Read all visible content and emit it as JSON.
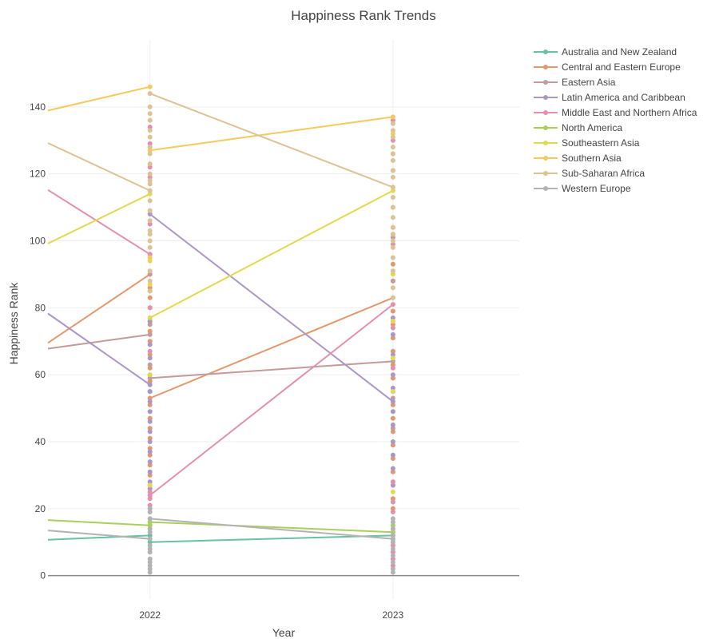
{
  "chart_data": {
    "type": "line",
    "title": "Happiness Rank Trends",
    "xlabel": "Year",
    "ylabel": "Happiness Rank",
    "x_ticks": [
      "2022",
      "2023"
    ],
    "y_ticks": [
      0,
      20,
      40,
      60,
      80,
      100,
      120,
      140
    ],
    "xlim": [
      2021.58,
      2023.52
    ],
    "ylim": [
      -7,
      160
    ],
    "grid": true,
    "legend_position": "top-right",
    "series": [
      {
        "name": "Australia and New Zealand",
        "color": "#66c2a5",
        "lines": [
          [
            [
              2021.58,
              10.7
            ],
            [
              2022,
              12
            ]
          ],
          [
            [
              2022,
              10
            ],
            [
              2023,
              12
            ]
          ]
        ],
        "points": [
          [
            2022,
            10
          ],
          [
            2022,
            12
          ],
          [
            2023,
            11
          ],
          [
            2023,
            12
          ]
        ]
      },
      {
        "name": "Central and Eastern Europe",
        "color": "#e5976c",
        "lines": [
          [
            [
              2021.58,
              69.5
            ],
            [
              2022,
              90
            ]
          ],
          [
            [
              2022,
              53
            ],
            [
              2023,
              83
            ]
          ]
        ],
        "points": [
          [
            2022,
            27
          ],
          [
            2022,
            30
          ],
          [
            2022,
            33
          ],
          [
            2022,
            36
          ],
          [
            2022,
            38
          ],
          [
            2022,
            41
          ],
          [
            2022,
            44
          ],
          [
            2022,
            47
          ],
          [
            2022,
            51
          ],
          [
            2022,
            53
          ],
          [
            2022,
            55
          ],
          [
            2022,
            58
          ],
          [
            2022,
            62
          ],
          [
            2022,
            66
          ],
          [
            2022,
            70
          ],
          [
            2022,
            73
          ],
          [
            2022,
            76
          ],
          [
            2022,
            80
          ],
          [
            2022,
            83
          ],
          [
            2022,
            86
          ],
          [
            2022,
            90
          ],
          [
            2023,
            20
          ],
          [
            2023,
            23
          ],
          [
            2023,
            27
          ],
          [
            2023,
            31
          ],
          [
            2023,
            35
          ],
          [
            2023,
            39
          ],
          [
            2023,
            43
          ],
          [
            2023,
            47
          ],
          [
            2023,
            51
          ],
          [
            2023,
            55
          ],
          [
            2023,
            59
          ],
          [
            2023,
            63
          ],
          [
            2023,
            67
          ],
          [
            2023,
            71
          ],
          [
            2023,
            75
          ],
          [
            2023,
            79
          ],
          [
            2023,
            83
          ],
          [
            2023,
            88
          ],
          [
            2023,
            93
          ]
        ]
      },
      {
        "name": "Eastern Asia",
        "color": "#c49a9a",
        "lines": [
          [
            [
              2021.58,
              67.8
            ],
            [
              2022,
              72
            ]
          ],
          [
            [
              2022,
              59
            ],
            [
              2023,
              64
            ]
          ]
        ],
        "points": [
          [
            2022,
            59
          ],
          [
            2022,
            63
          ],
          [
            2022,
            72
          ],
          [
            2022,
            75
          ],
          [
            2022,
            90
          ],
          [
            2023,
            44
          ],
          [
            2023,
            53
          ],
          [
            2023,
            64
          ],
          [
            2023,
            88
          ],
          [
            2023,
            101
          ]
        ]
      },
      {
        "name": "Latin America and Caribbean",
        "color": "#ab96c8",
        "lines": [
          [
            [
              2021.58,
              78.3
            ],
            [
              2022,
              57
            ]
          ],
          [
            [
              2022,
              108
            ],
            [
              2023,
              52
            ]
          ]
        ],
        "points": [
          [
            2022,
            26
          ],
          [
            2022,
            28
          ],
          [
            2022,
            31
          ],
          [
            2022,
            34
          ],
          [
            2022,
            37
          ],
          [
            2022,
            40
          ],
          [
            2022,
            43
          ],
          [
            2022,
            46
          ],
          [
            2022,
            49
          ],
          [
            2022,
            52
          ],
          [
            2022,
            55
          ],
          [
            2022,
            57
          ],
          [
            2022,
            60
          ],
          [
            2022,
            65
          ],
          [
            2022,
            69
          ],
          [
            2022,
            76
          ],
          [
            2022,
            108
          ],
          [
            2023,
            22
          ],
          [
            2023,
            27
          ],
          [
            2023,
            32
          ],
          [
            2023,
            36
          ],
          [
            2023,
            40
          ],
          [
            2023,
            45
          ],
          [
            2023,
            49
          ],
          [
            2023,
            52
          ],
          [
            2023,
            56
          ],
          [
            2023,
            60
          ],
          [
            2023,
            66
          ],
          [
            2023,
            72
          ],
          [
            2023,
            77
          ]
        ]
      },
      {
        "name": "Middle East and Northern Africa",
        "color": "#e48fb0",
        "lines": [
          [
            [
              2021.58,
              115.2
            ],
            [
              2022,
              96
            ]
          ],
          [
            [
              2022,
              24
            ],
            [
              2023,
              81
            ]
          ]
        ],
        "points": [
          [
            2022,
            21
          ],
          [
            2022,
            23
          ],
          [
            2022,
            24
          ],
          [
            2022,
            25
          ],
          [
            2022,
            67
          ],
          [
            2022,
            80
          ],
          [
            2022,
            96
          ],
          [
            2022,
            105
          ],
          [
            2022,
            119
          ],
          [
            2022,
            122
          ],
          [
            2022,
            129
          ],
          [
            2022,
            134
          ],
          [
            2023,
            3
          ],
          [
            2023,
            5
          ],
          [
            2023,
            7
          ],
          [
            2023,
            9
          ],
          [
            2023,
            14
          ],
          [
            2023,
            19
          ],
          [
            2023,
            22
          ],
          [
            2023,
            28
          ],
          [
            2023,
            62
          ],
          [
            2023,
            74
          ],
          [
            2023,
            81
          ],
          [
            2023,
            99
          ],
          [
            2023,
            104
          ],
          [
            2023,
            121
          ],
          [
            2023,
            130
          ],
          [
            2023,
            136
          ]
        ]
      },
      {
        "name": "North America",
        "color": "#a9cf5c",
        "lines": [
          [
            [
              2021.58,
              16.6
            ],
            [
              2022,
              15
            ]
          ],
          [
            [
              2022,
              16
            ],
            [
              2023,
              13
            ]
          ]
        ],
        "points": [
          [
            2022,
            15
          ],
          [
            2022,
            16
          ],
          [
            2023,
            13
          ],
          [
            2023,
            15
          ]
        ]
      },
      {
        "name": "Southeastern Asia",
        "color": "#e3d94f",
        "lines": [
          [
            [
              2021.58,
              99.2
            ],
            [
              2022,
              114
            ]
          ],
          [
            [
              2022,
              77
            ],
            [
              2023,
              115
            ]
          ]
        ],
        "points": [
          [
            2022,
            27
          ],
          [
            2022,
            60
          ],
          [
            2022,
            77
          ],
          [
            2022,
            87
          ],
          [
            2022,
            94
          ],
          [
            2022,
            114
          ],
          [
            2023,
            25
          ],
          [
            2023,
            55
          ],
          [
            2023,
            65
          ],
          [
            2023,
            76
          ],
          [
            2023,
            90
          ],
          [
            2023,
            115
          ]
        ]
      },
      {
        "name": "Southern Asia",
        "color": "#f5c95c",
        "lines": [
          [
            [
              2021.58,
              138.9
            ],
            [
              2022,
              146
            ]
          ],
          [
            [
              2022,
              127
            ],
            [
              2023,
              137
            ]
          ]
        ],
        "points": [
          [
            2022,
            85
          ],
          [
            2022,
            95
          ],
          [
            2022,
            127
          ],
          [
            2022,
            146
          ],
          [
            2023,
            110
          ],
          [
            2023,
            126
          ],
          [
            2023,
            132
          ],
          [
            2023,
            137
          ]
        ]
      },
      {
        "name": "Sub-Saharan Africa",
        "color": "#dcc394",
        "lines": [
          [
            [
              2021.58,
              129.2
            ],
            [
              2022,
              115
            ]
          ],
          [
            [
              2022,
              144
            ],
            [
              2023,
              116
            ]
          ]
        ],
        "points": [
          [
            2022,
            85
          ],
          [
            2022,
            88
          ],
          [
            2022,
            91
          ],
          [
            2022,
            98
          ],
          [
            2022,
            100
          ],
          [
            2022,
            102
          ],
          [
            2022,
            103
          ],
          [
            2022,
            106
          ],
          [
            2022,
            109
          ],
          [
            2022,
            112
          ],
          [
            2022,
            115
          ],
          [
            2022,
            117
          ],
          [
            2022,
            118
          ],
          [
            2022,
            120
          ],
          [
            2022,
            123
          ],
          [
            2022,
            126
          ],
          [
            2022,
            128
          ],
          [
            2022,
            131
          ],
          [
            2022,
            133
          ],
          [
            2022,
            136
          ],
          [
            2022,
            138
          ],
          [
            2022,
            140
          ],
          [
            2022,
            144
          ],
          [
            2023,
            83
          ],
          [
            2023,
            86
          ],
          [
            2023,
            91
          ],
          [
            2023,
            95
          ],
          [
            2023,
            98
          ],
          [
            2023,
            100
          ],
          [
            2023,
            102
          ],
          [
            2023,
            104
          ],
          [
            2023,
            107
          ],
          [
            2023,
            110
          ],
          [
            2023,
            113
          ],
          [
            2023,
            116
          ],
          [
            2023,
            119
          ],
          [
            2023,
            121
          ],
          [
            2023,
            124
          ],
          [
            2023,
            126
          ],
          [
            2023,
            128
          ],
          [
            2023,
            131
          ],
          [
            2023,
            133
          ],
          [
            2023,
            135
          ]
        ]
      },
      {
        "name": "Western Europe",
        "color": "#b3b3b3",
        "lines": [
          [
            [
              2021.58,
              13.5
            ],
            [
              2022,
              11
            ]
          ],
          [
            [
              2022,
              17
            ],
            [
              2023,
              11
            ]
          ]
        ],
        "points": [
          [
            2022,
            1
          ],
          [
            2022,
            2
          ],
          [
            2022,
            3
          ],
          [
            2022,
            4
          ],
          [
            2022,
            5
          ],
          [
            2022,
            7
          ],
          [
            2022,
            8
          ],
          [
            2022,
            9
          ],
          [
            2022,
            11
          ],
          [
            2022,
            13
          ],
          [
            2022,
            14
          ],
          [
            2022,
            17
          ],
          [
            2022,
            19
          ],
          [
            2022,
            20
          ],
          [
            2023,
            1
          ],
          [
            2023,
            2
          ],
          [
            2023,
            4
          ],
          [
            2023,
            6
          ],
          [
            2023,
            8
          ],
          [
            2023,
            10
          ],
          [
            2023,
            11
          ],
          [
            2023,
            12
          ],
          [
            2023,
            14
          ],
          [
            2023,
            16
          ],
          [
            2023,
            17
          ]
        ]
      }
    ]
  }
}
